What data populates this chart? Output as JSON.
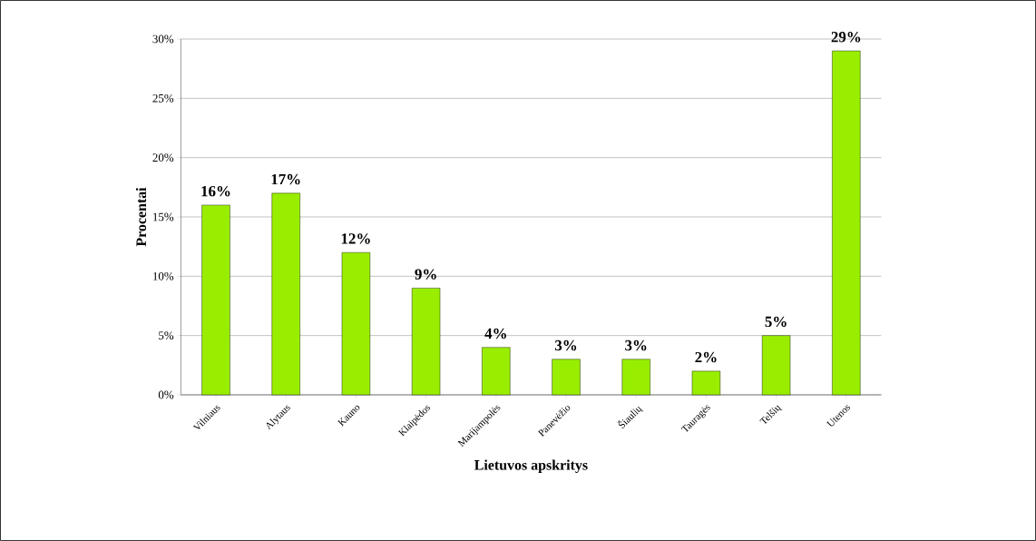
{
  "chart_data": {
    "type": "bar",
    "xlabel": "Lietuvos apskritys",
    "ylabel": "Procentai",
    "categories": [
      "Vilniaus",
      "Alytaus",
      "Kauno",
      "Klaipėdos",
      "Marijampolės",
      "Panevėžio",
      "Šiaulių",
      "Tauragės",
      "Telšių",
      "Utenos"
    ],
    "values": [
      16,
      17,
      12,
      9,
      4,
      3,
      3,
      2,
      5,
      29
    ],
    "value_labels": [
      "16%",
      "17%",
      "12%",
      "9%",
      "4%",
      "3%",
      "3%",
      "2%",
      "5%",
      "29%"
    ],
    "color": "#99ee00",
    "ylim": [
      0,
      30
    ],
    "yticks": [
      {
        "value": 0,
        "label": "0%"
      },
      {
        "value": 5,
        "label": "5%"
      },
      {
        "value": 10,
        "label": "10%"
      },
      {
        "value": 15,
        "label": "15%"
      },
      {
        "value": 20,
        "label": "20%"
      },
      {
        "value": 25,
        "label": "25%"
      },
      {
        "value": 30,
        "label": "30%"
      }
    ],
    "grid": "y"
  }
}
